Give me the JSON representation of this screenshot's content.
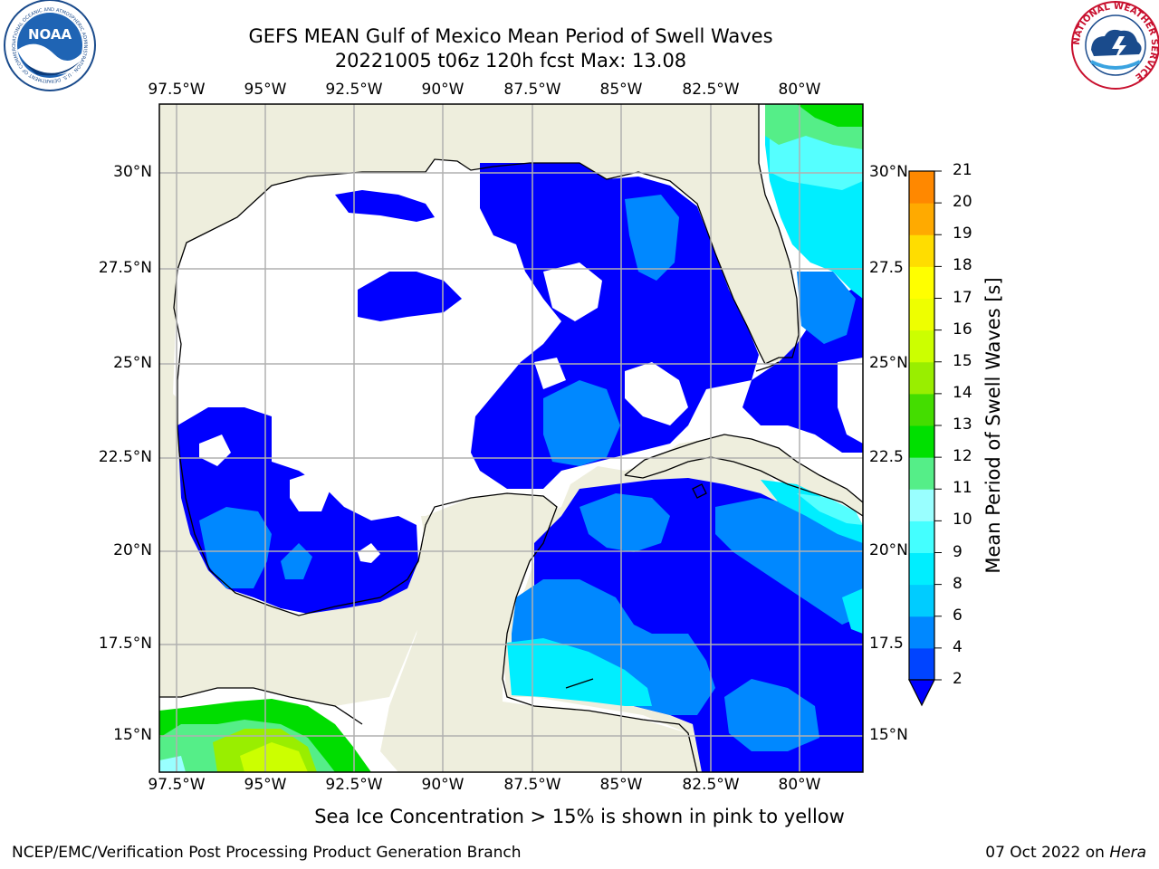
{
  "header": {
    "title_line1": "GEFS MEAN Gulf of Mexico Mean Period of Swell Waves",
    "title_line2": "20221005 t06z 120h fcst   Max: 13.08"
  },
  "logos": {
    "noaa_text": "NOAA",
    "noaa_ring_text": "NATIONAL OCEANIC AND ATMOSPHERIC ADMINISTRATION · U.S. DEPARTMENT OF COMMERCE",
    "nws_ring_text": "NATIONAL WEATHER SERVICE"
  },
  "axes": {
    "lon_labels": [
      "97.5°W",
      "95°W",
      "92.5°W",
      "90°W",
      "87.5°W",
      "85°W",
      "82.5°W",
      "80°W"
    ],
    "lat_labels_left": [
      "30°N",
      "27.5°N",
      "25°N",
      "22.5°N",
      "20°N",
      "17.5°N",
      "15°N"
    ],
    "lat_labels_right": [
      "30°N",
      "27.5",
      "25°N",
      "22.5",
      "20°N",
      "17.5",
      "15°N"
    ]
  },
  "colorbar": {
    "label": "Mean Period of Swell Waves [s]",
    "ticks": [
      "2",
      "4",
      "6",
      "8",
      "9",
      "10",
      "11",
      "12",
      "13",
      "14",
      "15",
      "16",
      "17",
      "18",
      "19",
      "20",
      "21"
    ],
    "colors": [
      "#0044ff",
      "#0088ff",
      "#00ccff",
      "#00eeff",
      "#44ffff",
      "#99ffff",
      "#55ee88",
      "#00e000",
      "#44dd00",
      "#99ee00",
      "#ccff00",
      "#eeff00",
      "#ffff00",
      "#ffdd00",
      "#ffaa00",
      "#ff8800",
      "#ff6600",
      "#ff4400",
      "#ff2200",
      "#ff0000"
    ]
  },
  "colors": {
    "land": "#eeeedd",
    "ocean_empty": "#ffffff",
    "deep_blue": "#0000ff",
    "medium_blue": "#0088ff",
    "cyan": "#00eeff",
    "light_cyan": "#55ffff",
    "light_green": "#55ee88",
    "green": "#00dd00",
    "yellow_green": "#ccff00",
    "grid": "#b0b0b0"
  },
  "notes": {
    "sea_ice": "Sea Ice Concentration > 15% is shown in pink to yellow"
  },
  "footer": {
    "left": "NCEP/EMC/Verification Post Processing Product Generation Branch",
    "right_date": "07 Oct 2022 on ",
    "right_machine": "Hera"
  }
}
